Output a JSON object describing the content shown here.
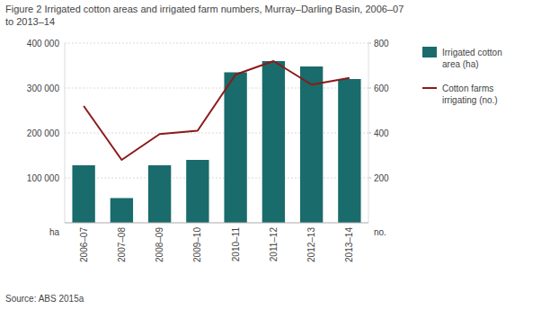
{
  "chart_data": {
    "type": "bar",
    "title": "Figure 2 Irrigated cotton areas and irrigated farm numbers, Murray–Darling Basin, 2006–07\nto 2013–14",
    "source": "Source: ABS 2015a",
    "y_label": "ha",
    "y2_label": "no.",
    "categories": [
      "2006–07",
      "2007–08",
      "2008–09",
      "2009–10",
      "2010–11",
      "2011–12",
      "2012–13",
      "2013–14"
    ],
    "series": [
      {
        "name": "Irrigated cotton\narea (ha)",
        "type": "bar",
        "color": "#1a6b6b",
        "values": [
          128000,
          55000,
          128000,
          140000,
          335000,
          360000,
          348000,
          320000
        ]
      },
      {
        "name": "Cotton farms\nirrigating (no.)",
        "type": "line",
        "axis": "y2",
        "color": "#8b1a1a",
        "values": [
          520,
          280,
          395,
          410,
          660,
          720,
          615,
          645
        ]
      }
    ],
    "ylim": [
      0,
      400000
    ],
    "yticks": [
      {
        "value": 100000,
        "label": "100 000"
      },
      {
        "value": 200000,
        "label": "200 000"
      },
      {
        "value": 300000,
        "label": "300 000"
      },
      {
        "value": 400000,
        "label": "400 000"
      }
    ],
    "y2lim": [
      0,
      800
    ],
    "y2ticks": [
      200,
      400,
      600,
      800
    ],
    "grid": true,
    "legend": "right"
  }
}
